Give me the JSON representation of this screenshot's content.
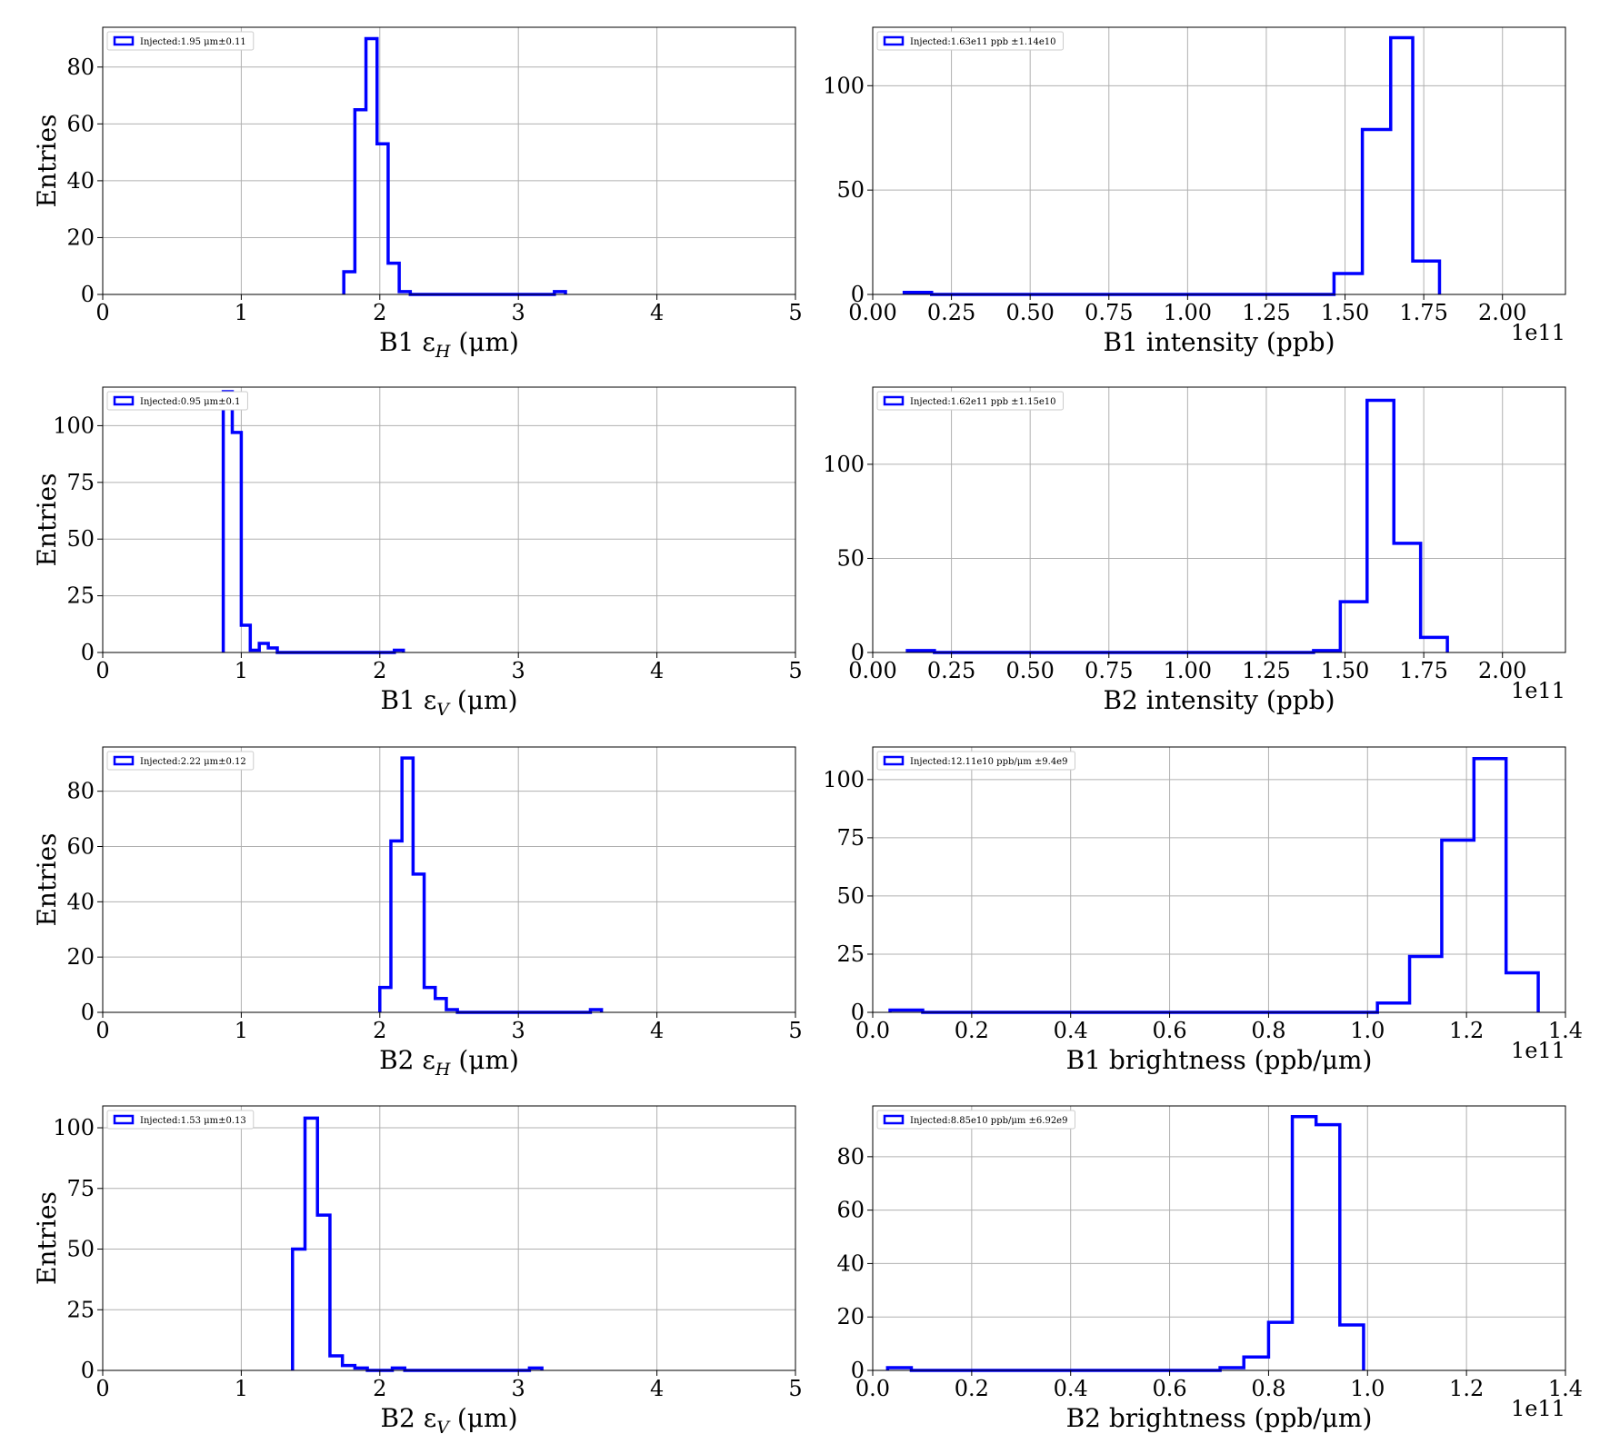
{
  "colors": {
    "series": "#0000ff",
    "grid": "#b0b0b0",
    "frame": "#000000"
  },
  "chart_data": [
    {
      "type": "histogram",
      "xlabel": "B1 εH (μm)",
      "xlabel_main": "B1 ε",
      "xlabel_sub": "H",
      "xlabel_unit": " (μm)",
      "ylabel": "Entries",
      "multiplier": "",
      "legend_label": "Injected:1.95 μm±0.11",
      "legend_placement": "top-left",
      "grid": true,
      "xlim": [
        0,
        5
      ],
      "ylim": [
        0,
        94
      ],
      "xticks": [
        0,
        1,
        2,
        3,
        4,
        5
      ],
      "xtick_labels": [
        "0",
        "1",
        "2",
        "3",
        "4",
        "5"
      ],
      "yticks": [
        0,
        20,
        40,
        60,
        80
      ],
      "ytick_labels": [
        "0",
        "20",
        "40",
        "60",
        "80"
      ],
      "bin_edges": [
        1.74,
        1.82,
        1.9,
        1.98,
        2.06,
        2.14,
        2.22,
        2.3,
        2.38,
        2.46,
        2.54,
        2.62,
        2.7,
        2.78,
        2.86,
        2.94,
        3.02,
        3.1,
        3.18,
        3.26,
        3.34
      ],
      "counts": [
        8,
        65,
        90,
        53,
        11,
        1,
        0,
        0,
        0,
        0,
        0,
        0,
        0,
        0,
        0,
        0,
        0,
        0,
        0,
        1
      ]
    },
    {
      "type": "histogram",
      "xlabel": "B1 intensity (ppb)",
      "xlabel_main": "B1 intensity (ppb)",
      "xlabel_sub": "",
      "xlabel_unit": "",
      "ylabel": "",
      "multiplier": "1e11",
      "legend_label": "Injected:1.63e11 ppb ±1.14e10",
      "legend_placement": "top-left",
      "grid": true,
      "xlim": [
        0,
        2.2
      ],
      "ylim": [
        0,
        128
      ],
      "xticks": [
        0,
        0.25,
        0.5,
        0.75,
        1.0,
        1.25,
        1.5,
        1.75,
        2.0
      ],
      "xtick_labels": [
        "0.00",
        "0.25",
        "0.50",
        "0.75",
        "1.00",
        "1.25",
        "1.50",
        "1.75",
        "2.00"
      ],
      "yticks": [
        0,
        50,
        100
      ],
      "ytick_labels": [
        "0",
        "50",
        "100"
      ],
      "bin_edges": [
        0.1,
        0.187,
        0.274,
        0.361,
        0.448,
        0.535,
        0.622,
        0.709,
        0.796,
        0.883,
        0.97,
        1.057,
        1.144,
        1.231,
        1.318,
        1.405,
        1.465,
        1.555,
        1.645,
        1.715,
        1.8
      ],
      "counts": [
        1,
        0,
        0,
        0,
        0,
        0,
        0,
        0,
        0,
        0,
        0,
        0,
        0,
        0,
        0,
        0,
        10,
        79,
        123,
        16
      ]
    },
    {
      "type": "histogram",
      "xlabel": "B1 εV (μm)",
      "xlabel_main": "B1 ε",
      "xlabel_sub": "V",
      "xlabel_unit": " (μm)",
      "ylabel": "Entries",
      "multiplier": "",
      "legend_label": "Injected:0.95 μm±0.1",
      "legend_placement": "top-left",
      "grid": true,
      "xlim": [
        0,
        5
      ],
      "ylim": [
        0,
        117
      ],
      "xticks": [
        0,
        1,
        2,
        3,
        4,
        5
      ],
      "xtick_labels": [
        "0",
        "1",
        "2",
        "3",
        "4",
        "5"
      ],
      "yticks": [
        0,
        25,
        50,
        75,
        100
      ],
      "ytick_labels": [
        "0",
        "25",
        "50",
        "75",
        "100"
      ],
      "bin_edges": [
        0.87,
        0.935,
        1.0,
        1.065,
        1.13,
        1.195,
        1.26,
        1.325,
        1.39,
        1.455,
        1.52,
        1.585,
        1.65,
        1.715,
        1.78,
        1.845,
        1.91,
        1.975,
        2.04,
        2.105,
        2.17
      ],
      "counts": [
        115,
        97,
        12,
        1,
        4,
        2,
        0,
        0,
        0,
        0,
        0,
        0,
        0,
        0,
        0,
        0,
        0,
        0,
        0,
        1
      ]
    },
    {
      "type": "histogram",
      "xlabel": "B2 intensity (ppb)",
      "xlabel_main": "B2 intensity (ppb)",
      "xlabel_sub": "",
      "xlabel_unit": "",
      "ylabel": "",
      "multiplier": "1e11",
      "legend_label": "Injected:1.62e11 ppb ±1.15e10",
      "legend_placement": "top-left",
      "grid": true,
      "xlim": [
        0,
        2.2
      ],
      "ylim": [
        0,
        141
      ],
      "xticks": [
        0,
        0.25,
        0.5,
        0.75,
        1.0,
        1.25,
        1.5,
        1.75,
        2.0
      ],
      "xtick_labels": [
        "0.00",
        "0.25",
        "0.50",
        "0.75",
        "1.00",
        "1.25",
        "1.50",
        "1.75",
        "2.00"
      ],
      "yticks": [
        0,
        50,
        100
      ],
      "ytick_labels": [
        "0",
        "50",
        "100"
      ],
      "bin_edges": [
        0.11,
        0.196,
        0.282,
        0.368,
        0.454,
        0.54,
        0.626,
        0.712,
        0.798,
        0.884,
        0.97,
        1.056,
        1.142,
        1.228,
        1.314,
        1.4,
        1.485,
        1.57,
        1.655,
        1.74,
        1.825
      ],
      "counts": [
        1,
        0,
        0,
        0,
        0,
        0,
        0,
        0,
        0,
        0,
        0,
        0,
        0,
        0,
        0,
        1,
        27,
        134,
        58,
        8
      ]
    },
    {
      "type": "histogram",
      "xlabel": "B2 εH (μm)",
      "xlabel_main": "B2 ε",
      "xlabel_sub": "H",
      "xlabel_unit": " (μm)",
      "ylabel": "Entries",
      "multiplier": "",
      "legend_label": "Injected:2.22 μm±0.12",
      "legend_placement": "top-left",
      "grid": true,
      "xlim": [
        0,
        5
      ],
      "ylim": [
        0,
        96
      ],
      "xticks": [
        0,
        1,
        2,
        3,
        4,
        5
      ],
      "xtick_labels": [
        "0",
        "1",
        "2",
        "3",
        "4",
        "5"
      ],
      "yticks": [
        0,
        20,
        40,
        60,
        80
      ],
      "ytick_labels": [
        "0",
        "20",
        "40",
        "60",
        "80"
      ],
      "bin_edges": [
        2.0,
        2.08,
        2.16,
        2.24,
        2.32,
        2.4,
        2.48,
        2.56,
        2.64,
        2.72,
        2.8,
        2.88,
        2.96,
        3.04,
        3.12,
        3.2,
        3.28,
        3.36,
        3.44,
        3.52,
        3.6
      ],
      "counts": [
        9,
        62,
        92,
        50,
        9,
        5,
        1,
        0,
        0,
        0,
        0,
        0,
        0,
        0,
        0,
        0,
        0,
        0,
        0,
        1
      ]
    },
    {
      "type": "histogram",
      "xlabel": "B1 brightness (ppb/μm)",
      "xlabel_main": "B1 brightness (ppb/μm)",
      "xlabel_sub": "",
      "xlabel_unit": "",
      "ylabel": "",
      "multiplier": "1e11",
      "legend_label": "Injected:12.11e10 ppb/μm ±9.4e9",
      "legend_placement": "top-left",
      "grid": true,
      "xlim": [
        0,
        1.4
      ],
      "ylim": [
        0,
        114
      ],
      "xticks": [
        0,
        0.2,
        0.4,
        0.6,
        0.8,
        1.0,
        1.2,
        1.4
      ],
      "xtick_labels": [
        "0.0",
        "0.2",
        "0.4",
        "0.6",
        "0.8",
        "1.0",
        "1.2",
        "1.4"
      ],
      "yticks": [
        0,
        25,
        50,
        75,
        100
      ],
      "ytick_labels": [
        "0",
        "25",
        "50",
        "75",
        "100"
      ],
      "bin_edges": [
        0.035,
        0.101,
        0.167,
        0.233,
        0.299,
        0.365,
        0.431,
        0.497,
        0.563,
        0.629,
        0.695,
        0.761,
        0.827,
        0.893,
        0.959,
        1.02,
        1.085,
        1.15,
        1.215,
        1.28,
        1.345
      ],
      "counts": [
        1,
        0,
        0,
        0,
        0,
        0,
        0,
        0,
        0,
        0,
        0,
        0,
        0,
        0,
        0,
        4,
        24,
        74,
        109,
        17
      ]
    },
    {
      "type": "histogram",
      "xlabel": "B2 εV (μm)",
      "xlabel_main": "B2 ε",
      "xlabel_sub": "V",
      "xlabel_unit": " (μm)",
      "ylabel": "Entries",
      "multiplier": "",
      "legend_label": "Injected:1.53 μm±0.13",
      "legend_placement": "top-left",
      "grid": true,
      "xlim": [
        0,
        5
      ],
      "ylim": [
        0,
        109
      ],
      "xticks": [
        0,
        1,
        2,
        3,
        4,
        5
      ],
      "xtick_labels": [
        "0",
        "1",
        "2",
        "3",
        "4",
        "5"
      ],
      "yticks": [
        0,
        25,
        50,
        75,
        100
      ],
      "ytick_labels": [
        "0",
        "25",
        "50",
        "75",
        "100"
      ],
      "bin_edges": [
        1.37,
        1.46,
        1.55,
        1.64,
        1.73,
        1.82,
        1.91,
        2.0,
        2.09,
        2.18,
        2.27,
        2.36,
        2.45,
        2.54,
        2.63,
        2.72,
        2.81,
        2.9,
        2.99,
        3.08,
        3.17
      ],
      "counts": [
        50,
        104,
        64,
        6,
        2,
        1,
        0,
        0,
        1,
        0,
        0,
        0,
        0,
        0,
        0,
        0,
        0,
        0,
        0,
        1
      ]
    },
    {
      "type": "histogram",
      "xlabel": "B2 brightness (ppb/μm)",
      "xlabel_main": "B2 brightness (ppb/μm)",
      "xlabel_sub": "",
      "xlabel_unit": "",
      "ylabel": "",
      "multiplier": "1e11",
      "legend_label": "Injected:8.85e10 ppb/μm ±6.92e9",
      "legend_placement": "top-left",
      "grid": true,
      "xlim": [
        0,
        1.4
      ],
      "ylim": [
        0,
        99
      ],
      "xticks": [
        0,
        0.2,
        0.4,
        0.6,
        0.8,
        1.0,
        1.2,
        1.4
      ],
      "xtick_labels": [
        "0.0",
        "0.2",
        "0.4",
        "0.6",
        "0.8",
        "1.0",
        "1.2",
        "1.4"
      ],
      "yticks": [
        0,
        20,
        40,
        60,
        80
      ],
      "ytick_labels": [
        "0",
        "20",
        "40",
        "60",
        "80"
      ],
      "bin_edges": [
        0.03,
        0.078,
        0.126,
        0.174,
        0.222,
        0.27,
        0.318,
        0.366,
        0.414,
        0.462,
        0.51,
        0.558,
        0.606,
        0.654,
        0.702,
        0.75,
        0.8,
        0.848,
        0.896,
        0.944,
        0.992
      ],
      "counts": [
        1,
        0,
        0,
        0,
        0,
        0,
        0,
        0,
        0,
        0,
        0,
        0,
        0,
        0,
        1,
        5,
        18,
        95,
        92,
        17
      ]
    }
  ]
}
